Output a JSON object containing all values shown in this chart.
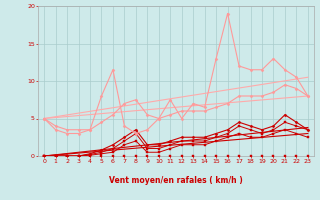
{
  "bg_color": "#ceeaea",
  "grid_color": "#b0d0d0",
  "xlabel": "Vent moyen/en rafales ( km/h )",
  "xlabel_color": "#cc0000",
  "tick_color": "#cc0000",
  "xlim": [
    -0.5,
    23.5
  ],
  "ylim": [
    0,
    20
  ],
  "yticks": [
    0,
    5,
    10,
    15,
    20
  ],
  "xticks": [
    0,
    1,
    2,
    3,
    4,
    5,
    6,
    7,
    8,
    9,
    10,
    11,
    12,
    13,
    14,
    15,
    16,
    17,
    18,
    19,
    20,
    21,
    22,
    23
  ],
  "lines": [
    {
      "x": [
        0,
        1,
        2,
        3,
        4,
        5,
        6,
        7,
        8,
        9,
        10,
        11,
        12,
        13,
        14,
        15,
        16,
        17,
        18,
        19,
        20,
        21,
        22,
        23
      ],
      "y": [
        0,
        0,
        0,
        0,
        0,
        0,
        0,
        0,
        0,
        0,
        0,
        0,
        0,
        0,
        0,
        0,
        0,
        0,
        0,
        0,
        0,
        0,
        0,
        0
      ],
      "color": "#cc0000",
      "marker": "s",
      "markersize": 1.5,
      "linewidth": 0.7,
      "zorder": 3
    },
    {
      "x": [
        0,
        1,
        2,
        3,
        4,
        5,
        6,
        7,
        8,
        9,
        10,
        11,
        12,
        13,
        14,
        15,
        16,
        17,
        18,
        19,
        20,
        21,
        22,
        23
      ],
      "y": [
        0,
        0,
        0,
        0,
        0.1,
        0.3,
        0.5,
        1.5,
        2,
        0.5,
        0.5,
        1,
        1.5,
        1.5,
        1.5,
        2,
        2.5,
        3,
        2.5,
        2.5,
        3,
        3.5,
        3,
        2.5
      ],
      "color": "#cc0000",
      "marker": "s",
      "markersize": 1.5,
      "linewidth": 0.7,
      "zorder": 3
    },
    {
      "x": [
        0,
        1,
        2,
        3,
        4,
        5,
        6,
        7,
        8,
        9,
        10,
        11,
        12,
        13,
        14,
        15,
        16,
        17,
        18,
        19,
        20,
        21,
        22,
        23
      ],
      "y": [
        0,
        0,
        0,
        0,
        0.2,
        0.5,
        1,
        2,
        3,
        1,
        1,
        1.5,
        2,
        2,
        2,
        2.5,
        3,
        4,
        3.5,
        3,
        3.5,
        4.5,
        4,
        3.5
      ],
      "color": "#cc0000",
      "marker": "s",
      "markersize": 1.5,
      "linewidth": 0.7,
      "zorder": 3
    },
    {
      "x": [
        0,
        1,
        2,
        3,
        4,
        5,
        6,
        7,
        8,
        9,
        10,
        11,
        12,
        13,
        14,
        15,
        16,
        17,
        18,
        19,
        20,
        21,
        22,
        23
      ],
      "y": [
        0,
        0,
        0,
        0,
        0.3,
        0.8,
        1.5,
        2.5,
        3.5,
        1.5,
        1.5,
        2,
        2.5,
        2.5,
        2.5,
        3,
        3.5,
        4.5,
        4,
        3.5,
        4,
        5.5,
        4.5,
        3.5
      ],
      "color": "#cc0000",
      "marker": "D",
      "markersize": 1.5,
      "linewidth": 0.8,
      "zorder": 3
    },
    {
      "x": [
        0,
        23
      ],
      "y": [
        0.0,
        3.0
      ],
      "color": "#cc0000",
      "marker": null,
      "markersize": 0,
      "linewidth": 0.8,
      "zorder": 2
    },
    {
      "x": [
        0,
        23
      ],
      "y": [
        0.0,
        3.8
      ],
      "color": "#cc0000",
      "marker": null,
      "markersize": 0,
      "linewidth": 0.8,
      "zorder": 2
    },
    {
      "x": [
        0,
        1,
        2,
        3,
        4,
        5,
        6,
        7,
        8,
        9,
        10,
        11,
        12,
        13,
        14,
        15,
        16,
        17,
        18,
        19,
        20,
        21,
        22,
        23
      ],
      "y": [
        5,
        4,
        3.5,
        3.5,
        3.5,
        4.5,
        5.5,
        7,
        7.5,
        5.5,
        5,
        5.5,
        6,
        6,
        6,
        6.5,
        7,
        8,
        8,
        8,
        8.5,
        9.5,
        9,
        8
      ],
      "color": "#ff9999",
      "marker": "D",
      "markersize": 1.5,
      "linewidth": 0.8,
      "zorder": 3
    },
    {
      "x": [
        0,
        1,
        2,
        3,
        4,
        5,
        6,
        7,
        8,
        9,
        10,
        11,
        12,
        13,
        14,
        15,
        16,
        17,
        18,
        19,
        20,
        21,
        22,
        23
      ],
      "y": [
        5,
        3.5,
        3,
        3,
        3.5,
        8,
        11.5,
        4,
        3,
        3.5,
        5,
        7.5,
        5,
        7,
        6.5,
        13,
        19,
        12,
        11.5,
        11.5,
        13,
        11.5,
        10.5,
        8
      ],
      "color": "#ff9999",
      "marker": "D",
      "markersize": 1.5,
      "linewidth": 0.8,
      "zorder": 3
    },
    {
      "x": [
        0,
        23
      ],
      "y": [
        5.0,
        8.0
      ],
      "color": "#ffaaaa",
      "marker": null,
      "markersize": 0,
      "linewidth": 0.8,
      "zorder": 2
    },
    {
      "x": [
        0,
        23
      ],
      "y": [
        5.0,
        10.5
      ],
      "color": "#ffaaaa",
      "marker": null,
      "markersize": 0,
      "linewidth": 0.8,
      "zorder": 2
    }
  ],
  "wind_arrows": {
    "x": [
      5,
      6,
      7,
      8,
      9,
      15,
      16,
      17,
      18,
      19,
      20,
      21,
      22,
      23
    ],
    "dirs": [
      "←",
      "↓",
      "↙",
      "↙",
      "↓",
      "↓",
      "↙",
      "↗",
      "↑",
      "↑",
      "↗",
      "↗",
      "↗",
      "↗"
    ]
  }
}
